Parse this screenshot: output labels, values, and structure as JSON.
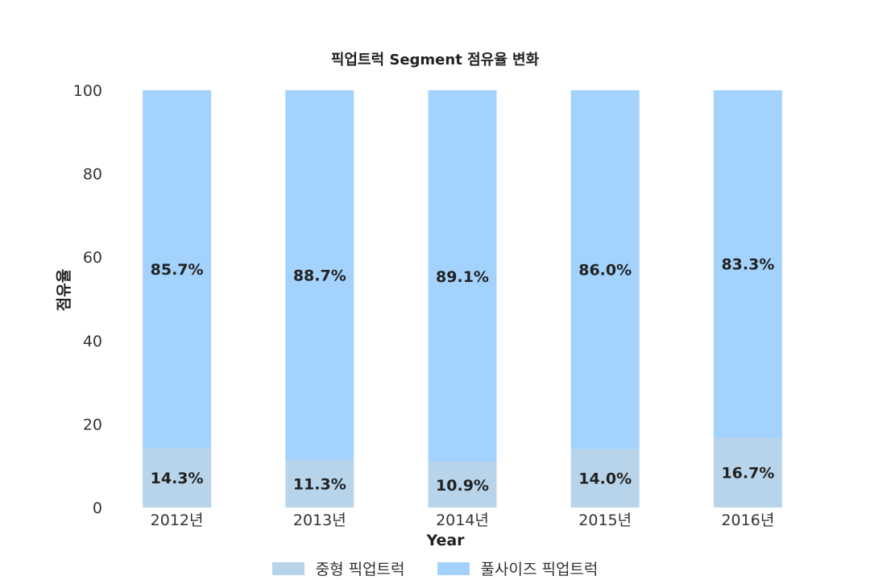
{
  "chart_data": {
    "type": "bar",
    "stacked": true,
    "title": "픽업트럭 Segment 점유율 변화",
    "xlabel": "Year",
    "ylabel": "점유율",
    "categories": [
      "2012년",
      "2013년",
      "2014년",
      "2015년",
      "2016년"
    ],
    "ylim": [
      0,
      100
    ],
    "yticks": [
      0,
      20,
      40,
      60,
      80,
      100
    ],
    "grid": false,
    "legend_position": "bottom",
    "series": [
      {
        "name": "중형 픽업트럭",
        "color": "#b8d4ea",
        "values": [
          14.3,
          11.3,
          10.9,
          14.0,
          16.7
        ],
        "labels": [
          "14.3%",
          "11.3%",
          "10.9%",
          "14.0%",
          "16.7%"
        ]
      },
      {
        "name": "풀사이즈 픽업트럭",
        "color": "#a3d3fd",
        "values": [
          85.7,
          88.7,
          89.1,
          86.0,
          83.3
        ],
        "labels": [
          "85.7%",
          "88.7%",
          "89.1%",
          "86.0%",
          "83.3%"
        ]
      }
    ]
  }
}
